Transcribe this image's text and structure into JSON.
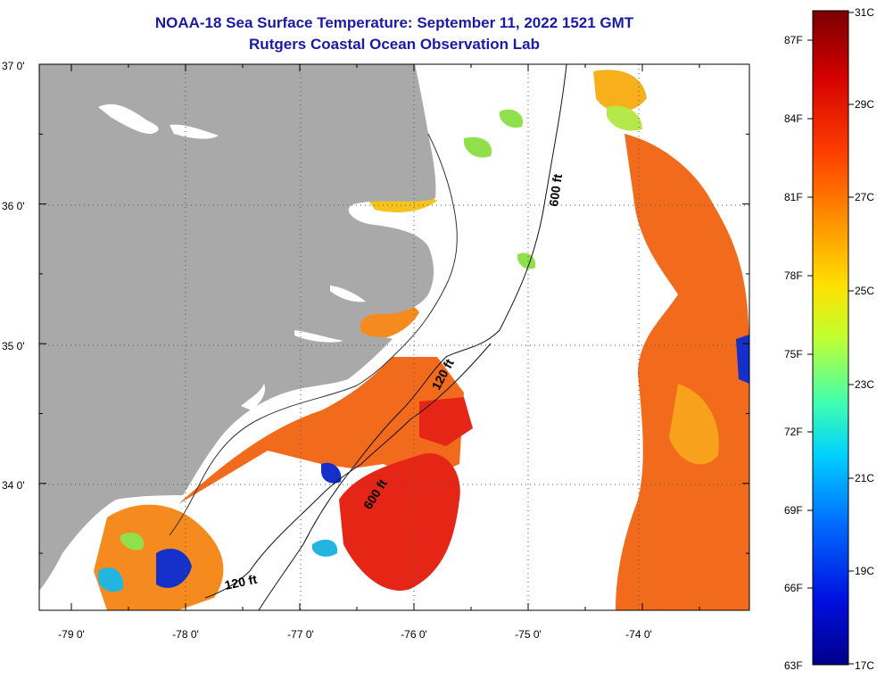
{
  "title": {
    "line1": "NOAA-18 Sea Surface Temperature:  September 11, 2022 1521 GMT",
    "line2": "Rutgers Coastal Ocean Observation Lab"
  },
  "map": {
    "lat_labels": [
      "37 0'",
      "36 0'",
      "35 0'",
      "34 0'"
    ],
    "lon_labels": [
      "-79 0'",
      "-78 0'",
      "-77 0'",
      "-76 0'",
      "-75 0'",
      "-74 0'"
    ],
    "lat_range": [
      33.1,
      37.0
    ],
    "lon_range": [
      -79.3,
      -73.0
    ],
    "isobath_labels": {
      "shelf_600_north": "600 ft",
      "shelf_120_middle": "120 ft",
      "shelf_600_south": "600 ft",
      "shelf_120_south": "120 ft"
    },
    "colors": {
      "land": "#a9a9a9",
      "cloud": "#ffffff",
      "warm": "#f26a1b",
      "hot": "#e52616",
      "mild": "#f7a11c",
      "cool": "#8fe04a",
      "cold": "#1430c8"
    }
  },
  "colorbar": {
    "fahrenheit_labels": [
      "87F",
      "84F",
      "81F",
      "78F",
      "75F",
      "72F",
      "69F",
      "66F",
      "63F"
    ],
    "celsius_labels": [
      "31C",
      "29C",
      "27C",
      "25C",
      "23C",
      "21C",
      "19C",
      "17C"
    ],
    "range_celsius": [
      17,
      31
    ],
    "range_fahrenheit": [
      63,
      88
    ],
    "gradient_stops": [
      "#7a0000",
      "#d40000",
      "#ff4000",
      "#ff9000",
      "#ffe000",
      "#c0ff30",
      "#40ffb0",
      "#00d0ff",
      "#0070ff",
      "#0010e0",
      "#00008a"
    ]
  }
}
